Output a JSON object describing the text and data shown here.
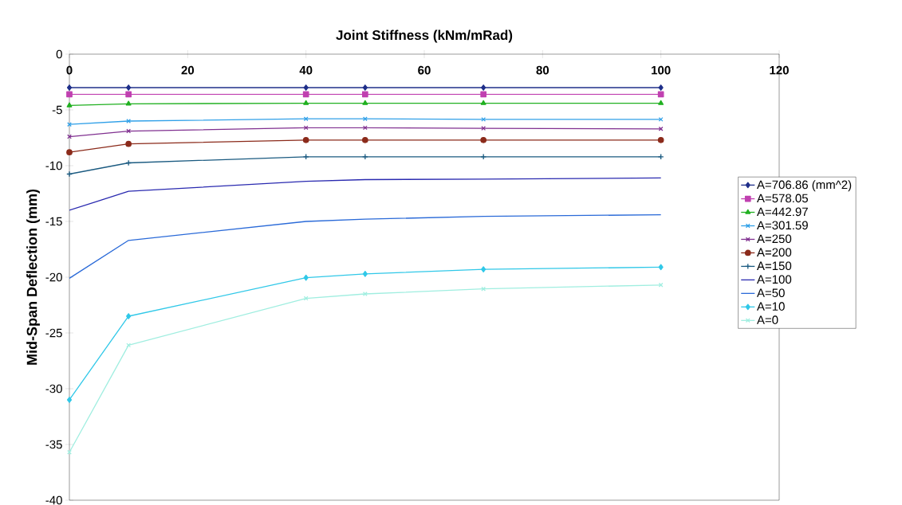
{
  "chart_data": {
    "type": "line",
    "xlabel": "Joint Stiffness (kNm/mRad)",
    "ylabel": "Mid-Span Deflection (mm)",
    "x": [
      0,
      10,
      40,
      50,
      70,
      100
    ],
    "xlim": [
      0,
      120
    ],
    "xticks": [
      0,
      20,
      40,
      60,
      80,
      100,
      120
    ],
    "ylim": [
      -40,
      0
    ],
    "yticks": [
      -40,
      -35,
      -30,
      -25,
      -20,
      -15,
      -10,
      -5,
      0
    ],
    "grid": false,
    "legend": "right",
    "series": [
      {
        "name": "A=706.86 (mm^2)",
        "color": "#1f2f8a",
        "marker": "diamond",
        "values": [
          -3.0,
          -3.0,
          -3.0,
          -3.0,
          -3.0,
          -3.0
        ]
      },
      {
        "name": "A=578.05",
        "color": "#c040b0",
        "marker": "square",
        "values": [
          -3.6,
          -3.6,
          -3.6,
          -3.6,
          -3.6,
          -3.6
        ]
      },
      {
        "name": "A=442.97",
        "color": "#20b020",
        "marker": "triangle",
        "values": [
          -4.6,
          -4.45,
          -4.4,
          -4.4,
          -4.4,
          -4.4
        ]
      },
      {
        "name": "A=301.59",
        "color": "#30a0e8",
        "marker": "cross",
        "values": [
          -6.3,
          -6.0,
          -5.8,
          -5.8,
          -5.85,
          -5.85
        ]
      },
      {
        "name": "A=250",
        "color": "#803090",
        "marker": "cross",
        "values": [
          -7.4,
          -6.9,
          -6.6,
          -6.6,
          -6.65,
          -6.7
        ]
      },
      {
        "name": "A=200",
        "color": "#8b2a1a",
        "marker": "circle",
        "values": [
          -8.8,
          -8.05,
          -7.7,
          -7.7,
          -7.7,
          -7.7
        ]
      },
      {
        "name": "A=150",
        "color": "#1a5a80",
        "marker": "plus",
        "values": [
          -10.75,
          -9.75,
          -9.2,
          -9.2,
          -9.2,
          -9.2
        ]
      },
      {
        "name": "A=100",
        "color": "#2a2ab0",
        "marker": "none",
        "values": [
          -14.0,
          -12.3,
          -11.4,
          -11.25,
          -11.2,
          -11.1
        ]
      },
      {
        "name": "A=50",
        "color": "#2a6ad8",
        "marker": "none",
        "values": [
          -20.1,
          -16.7,
          -15.0,
          -14.8,
          -14.55,
          -14.4
        ]
      },
      {
        "name": "A=10",
        "color": "#30c8e8",
        "marker": "diamond",
        "values": [
          -31.0,
          -23.5,
          -20.05,
          -19.7,
          -19.3,
          -19.1
        ]
      },
      {
        "name": "A=0",
        "color": "#a0eee0",
        "marker": "cross",
        "values": [
          -35.7,
          -26.1,
          -21.9,
          -21.5,
          -21.05,
          -20.7
        ]
      }
    ]
  }
}
